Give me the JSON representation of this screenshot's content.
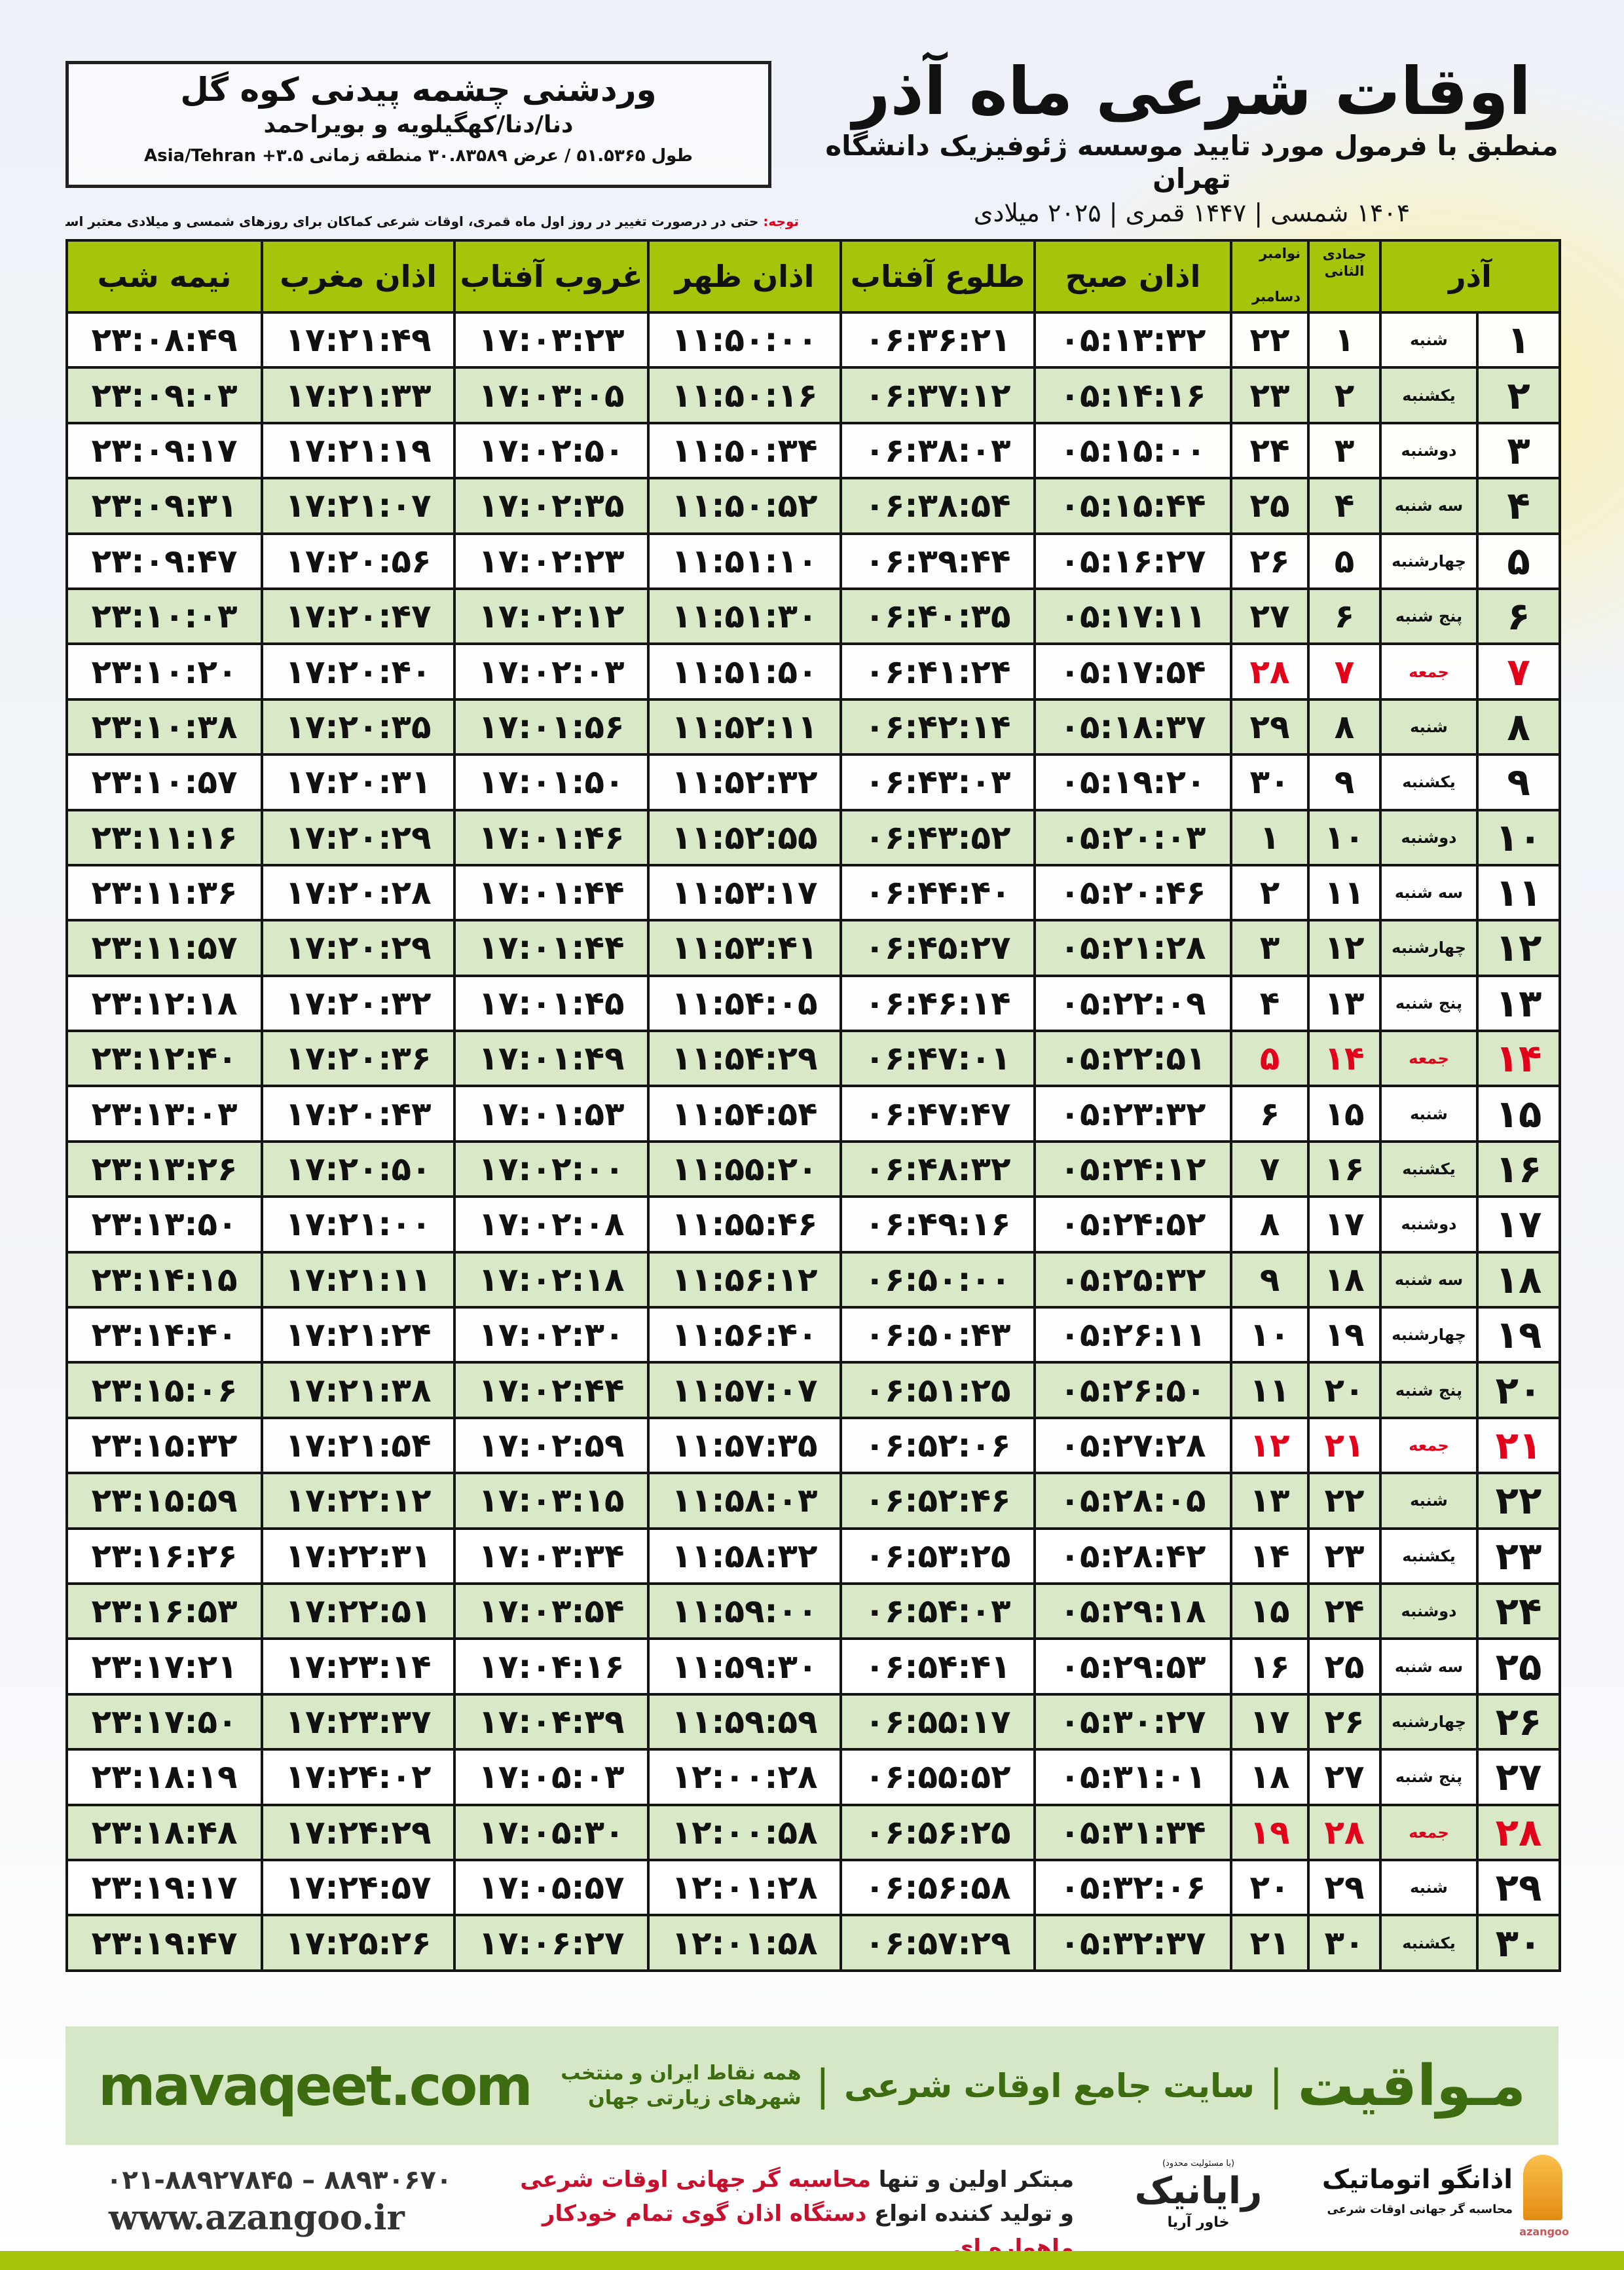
{
  "location": {
    "city": "وردشنی چشمه پیدنی کوه گل",
    "province": "دنا/دنا/کهگیلویه و بویراحمد",
    "coords": "طول ۵۱.۵۳۶۵ / عرض ۳۰.۸۳۵۸۹ منطقه زمانی ۳.۵+ Asia/Tehran"
  },
  "header": {
    "title": "اوقات شرعی ماه آذر",
    "subtitle": "منطبق با فرمول مورد تایید موسسه ژئوفیزیک دانشگاه تهران",
    "date_line": "۱۴۰۴ شمسی | ۱۴۴۷ قمری | ۲۰۲۵ میلادی"
  },
  "note": {
    "label": "توجه:",
    "text": " حتی در درصورت تغییر در روز اول ماه قمری، اوقات شرعی کماکان برای روزهای شمسی و میلادی معتبر است."
  },
  "table": {
    "columns": {
      "month": "آذر",
      "hijri": "جمادی الثانی",
      "greg_top": "نوامبر",
      "greg_bottom": "دسامبر",
      "sobh": "اذان صبح",
      "tolu": "طلوع آفتاب",
      "zohr": "اذان ظهر",
      "ghorub": "غروب آفتاب",
      "maghreb": "اذان مغرب",
      "nimeshab": "نیمه شب"
    },
    "highlight_color": "#e3001b",
    "rows": [
      {
        "day": "۱",
        "weekday": "شنبه",
        "hijri": "۱",
        "greg": "۲۲",
        "sobh": "۰۵:۱۳:۳۲",
        "tolu": "۰۶:۳۶:۲۱",
        "zohr": "۱۱:۵۰:۰۰",
        "ghorub": "۱۷:۰۳:۲۳",
        "maghreb": "۱۷:۲۱:۴۹",
        "nimeshab": "۲۳:۰۸:۴۹",
        "friday": false
      },
      {
        "day": "۲",
        "weekday": "یکشنبه",
        "hijri": "۲",
        "greg": "۲۳",
        "sobh": "۰۵:۱۴:۱۶",
        "tolu": "۰۶:۳۷:۱۲",
        "zohr": "۱۱:۵۰:۱۶",
        "ghorub": "۱۷:۰۳:۰۵",
        "maghreb": "۱۷:۲۱:۳۳",
        "nimeshab": "۲۳:۰۹:۰۳",
        "friday": false
      },
      {
        "day": "۳",
        "weekday": "دوشنبه",
        "hijri": "۳",
        "greg": "۲۴",
        "sobh": "۰۵:۱۵:۰۰",
        "tolu": "۰۶:۳۸:۰۳",
        "zohr": "۱۱:۵۰:۳۴",
        "ghorub": "۱۷:۰۲:۵۰",
        "maghreb": "۱۷:۲۱:۱۹",
        "nimeshab": "۲۳:۰۹:۱۷",
        "friday": false
      },
      {
        "day": "۴",
        "weekday": "سه شنبه",
        "hijri": "۴",
        "greg": "۲۵",
        "sobh": "۰۵:۱۵:۴۴",
        "tolu": "۰۶:۳۸:۵۴",
        "zohr": "۱۱:۵۰:۵۲",
        "ghorub": "۱۷:۰۲:۳۵",
        "maghreb": "۱۷:۲۱:۰۷",
        "nimeshab": "۲۳:۰۹:۳۱",
        "friday": false
      },
      {
        "day": "۵",
        "weekday": "چهارشنبه",
        "hijri": "۵",
        "greg": "۲۶",
        "sobh": "۰۵:۱۶:۲۷",
        "tolu": "۰۶:۳۹:۴۴",
        "zohr": "۱۱:۵۱:۱۰",
        "ghorub": "۱۷:۰۲:۲۳",
        "maghreb": "۱۷:۲۰:۵۶",
        "nimeshab": "۲۳:۰۹:۴۷",
        "friday": false
      },
      {
        "day": "۶",
        "weekday": "پنج شنبه",
        "hijri": "۶",
        "greg": "۲۷",
        "sobh": "۰۵:۱۷:۱۱",
        "tolu": "۰۶:۴۰:۳۵",
        "zohr": "۱۱:۵۱:۳۰",
        "ghorub": "۱۷:۰۲:۱۲",
        "maghreb": "۱۷:۲۰:۴۷",
        "nimeshab": "۲۳:۱۰:۰۳",
        "friday": false
      },
      {
        "day": "۷",
        "weekday": "جمعه",
        "hijri": "۷",
        "greg": "۲۸",
        "sobh": "۰۵:۱۷:۵۴",
        "tolu": "۰۶:۴۱:۲۴",
        "zohr": "۱۱:۵۱:۵۰",
        "ghorub": "۱۷:۰۲:۰۳",
        "maghreb": "۱۷:۲۰:۴۰",
        "nimeshab": "۲۳:۱۰:۲۰",
        "friday": true
      },
      {
        "day": "۸",
        "weekday": "شنبه",
        "hijri": "۸",
        "greg": "۲۹",
        "sobh": "۰۵:۱۸:۳۷",
        "tolu": "۰۶:۴۲:۱۴",
        "zohr": "۱۱:۵۲:۱۱",
        "ghorub": "۱۷:۰۱:۵۶",
        "maghreb": "۱۷:۲۰:۳۵",
        "nimeshab": "۲۳:۱۰:۳۸",
        "friday": false
      },
      {
        "day": "۹",
        "weekday": "یکشنبه",
        "hijri": "۹",
        "greg": "۳۰",
        "sobh": "۰۵:۱۹:۲۰",
        "tolu": "۰۶:۴۳:۰۳",
        "zohr": "۱۱:۵۲:۳۲",
        "ghorub": "۱۷:۰۱:۵۰",
        "maghreb": "۱۷:۲۰:۳۱",
        "nimeshab": "۲۳:۱۰:۵۷",
        "friday": false
      },
      {
        "day": "۱۰",
        "weekday": "دوشنبه",
        "hijri": "۱۰",
        "greg": "۱",
        "sobh": "۰۵:۲۰:۰۳",
        "tolu": "۰۶:۴۳:۵۲",
        "zohr": "۱۱:۵۲:۵۵",
        "ghorub": "۱۷:۰۱:۴۶",
        "maghreb": "۱۷:۲۰:۲۹",
        "nimeshab": "۲۳:۱۱:۱۶",
        "friday": false
      },
      {
        "day": "۱۱",
        "weekday": "سه شنبه",
        "hijri": "۱۱",
        "greg": "۲",
        "sobh": "۰۵:۲۰:۴۶",
        "tolu": "۰۶:۴۴:۴۰",
        "zohr": "۱۱:۵۳:۱۷",
        "ghorub": "۱۷:۰۱:۴۴",
        "maghreb": "۱۷:۲۰:۲۸",
        "nimeshab": "۲۳:۱۱:۳۶",
        "friday": false
      },
      {
        "day": "۱۲",
        "weekday": "چهارشنبه",
        "hijri": "۱۲",
        "greg": "۳",
        "sobh": "۰۵:۲۱:۲۸",
        "tolu": "۰۶:۴۵:۲۷",
        "zohr": "۱۱:۵۳:۴۱",
        "ghorub": "۱۷:۰۱:۴۴",
        "maghreb": "۱۷:۲۰:۲۹",
        "nimeshab": "۲۳:۱۱:۵۷",
        "friday": false
      },
      {
        "day": "۱۳",
        "weekday": "پنج شنبه",
        "hijri": "۱۳",
        "greg": "۴",
        "sobh": "۰۵:۲۲:۰۹",
        "tolu": "۰۶:۴۶:۱۴",
        "zohr": "۱۱:۵۴:۰۵",
        "ghorub": "۱۷:۰۱:۴۵",
        "maghreb": "۱۷:۲۰:۳۲",
        "nimeshab": "۲۳:۱۲:۱۸",
        "friday": false
      },
      {
        "day": "۱۴",
        "weekday": "جمعه",
        "hijri": "۱۴",
        "greg": "۵",
        "sobh": "۰۵:۲۲:۵۱",
        "tolu": "۰۶:۴۷:۰۱",
        "zohr": "۱۱:۵۴:۲۹",
        "ghorub": "۱۷:۰۱:۴۹",
        "maghreb": "۱۷:۲۰:۳۶",
        "nimeshab": "۲۳:۱۲:۴۰",
        "friday": true
      },
      {
        "day": "۱۵",
        "weekday": "شنبه",
        "hijri": "۱۵",
        "greg": "۶",
        "sobh": "۰۵:۲۳:۳۲",
        "tolu": "۰۶:۴۷:۴۷",
        "zohr": "۱۱:۵۴:۵۴",
        "ghorub": "۱۷:۰۱:۵۳",
        "maghreb": "۱۷:۲۰:۴۳",
        "nimeshab": "۲۳:۱۳:۰۳",
        "friday": false
      },
      {
        "day": "۱۶",
        "weekday": "یکشنبه",
        "hijri": "۱۶",
        "greg": "۷",
        "sobh": "۰۵:۲۴:۱۲",
        "tolu": "۰۶:۴۸:۳۲",
        "zohr": "۱۱:۵۵:۲۰",
        "ghorub": "۱۷:۰۲:۰۰",
        "maghreb": "۱۷:۲۰:۵۰",
        "nimeshab": "۲۳:۱۳:۲۶",
        "friday": false
      },
      {
        "day": "۱۷",
        "weekday": "دوشنبه",
        "hijri": "۱۷",
        "greg": "۸",
        "sobh": "۰۵:۲۴:۵۲",
        "tolu": "۰۶:۴۹:۱۶",
        "zohr": "۱۱:۵۵:۴۶",
        "ghorub": "۱۷:۰۲:۰۸",
        "maghreb": "۱۷:۲۱:۰۰",
        "nimeshab": "۲۳:۱۳:۵۰",
        "friday": false
      },
      {
        "day": "۱۸",
        "weekday": "سه شنبه",
        "hijri": "۱۸",
        "greg": "۹",
        "sobh": "۰۵:۲۵:۳۲",
        "tolu": "۰۶:۵۰:۰۰",
        "zohr": "۱۱:۵۶:۱۲",
        "ghorub": "۱۷:۰۲:۱۸",
        "maghreb": "۱۷:۲۱:۱۱",
        "nimeshab": "۲۳:۱۴:۱۵",
        "friday": false
      },
      {
        "day": "۱۹",
        "weekday": "چهارشنبه",
        "hijri": "۱۹",
        "greg": "۱۰",
        "sobh": "۰۵:۲۶:۱۱",
        "tolu": "۰۶:۵۰:۴۳",
        "zohr": "۱۱:۵۶:۴۰",
        "ghorub": "۱۷:۰۲:۳۰",
        "maghreb": "۱۷:۲۱:۲۴",
        "nimeshab": "۲۳:۱۴:۴۰",
        "friday": false
      },
      {
        "day": "۲۰",
        "weekday": "پنج شنبه",
        "hijri": "۲۰",
        "greg": "۱۱",
        "sobh": "۰۵:۲۶:۵۰",
        "tolu": "۰۶:۵۱:۲۵",
        "zohr": "۱۱:۵۷:۰۷",
        "ghorub": "۱۷:۰۲:۴۴",
        "maghreb": "۱۷:۲۱:۳۸",
        "nimeshab": "۲۳:۱۵:۰۶",
        "friday": false
      },
      {
        "day": "۲۱",
        "weekday": "جمعه",
        "hijri": "۲۱",
        "greg": "۱۲",
        "sobh": "۰۵:۲۷:۲۸",
        "tolu": "۰۶:۵۲:۰۶",
        "zohr": "۱۱:۵۷:۳۵",
        "ghorub": "۱۷:۰۲:۵۹",
        "maghreb": "۱۷:۲۱:۵۴",
        "nimeshab": "۲۳:۱۵:۳۲",
        "friday": true
      },
      {
        "day": "۲۲",
        "weekday": "شنبه",
        "hijri": "۲۲",
        "greg": "۱۳",
        "sobh": "۰۵:۲۸:۰۵",
        "tolu": "۰۶:۵۲:۴۶",
        "zohr": "۱۱:۵۸:۰۳",
        "ghorub": "۱۷:۰۳:۱۵",
        "maghreb": "۱۷:۲۲:۱۲",
        "nimeshab": "۲۳:۱۵:۵۹",
        "friday": false
      },
      {
        "day": "۲۳",
        "weekday": "یکشنبه",
        "hijri": "۲۳",
        "greg": "۱۴",
        "sobh": "۰۵:۲۸:۴۲",
        "tolu": "۰۶:۵۳:۲۵",
        "zohr": "۱۱:۵۸:۳۲",
        "ghorub": "۱۷:۰۳:۳۴",
        "maghreb": "۱۷:۲۲:۳۱",
        "nimeshab": "۲۳:۱۶:۲۶",
        "friday": false
      },
      {
        "day": "۲۴",
        "weekday": "دوشنبه",
        "hijri": "۲۴",
        "greg": "۱۵",
        "sobh": "۰۵:۲۹:۱۸",
        "tolu": "۰۶:۵۴:۰۳",
        "zohr": "۱۱:۵۹:۰۰",
        "ghorub": "۱۷:۰۳:۵۴",
        "maghreb": "۱۷:۲۲:۵۱",
        "nimeshab": "۲۳:۱۶:۵۳",
        "friday": false
      },
      {
        "day": "۲۵",
        "weekday": "سه شنبه",
        "hijri": "۲۵",
        "greg": "۱۶",
        "sobh": "۰۵:۲۹:۵۳",
        "tolu": "۰۶:۵۴:۴۱",
        "zohr": "۱۱:۵۹:۳۰",
        "ghorub": "۱۷:۰۴:۱۶",
        "maghreb": "۱۷:۲۳:۱۴",
        "nimeshab": "۲۳:۱۷:۲۱",
        "friday": false
      },
      {
        "day": "۲۶",
        "weekday": "چهارشنبه",
        "hijri": "۲۶",
        "greg": "۱۷",
        "sobh": "۰۵:۳۰:۲۷",
        "tolu": "۰۶:۵۵:۱۷",
        "zohr": "۱۱:۵۹:۵۹",
        "ghorub": "۱۷:۰۴:۳۹",
        "maghreb": "۱۷:۲۳:۳۷",
        "nimeshab": "۲۳:۱۷:۵۰",
        "friday": false
      },
      {
        "day": "۲۷",
        "weekday": "پنج شنبه",
        "hijri": "۲۷",
        "greg": "۱۸",
        "sobh": "۰۵:۳۱:۰۱",
        "tolu": "۰۶:۵۵:۵۲",
        "zohr": "۱۲:۰۰:۲۸",
        "ghorub": "۱۷:۰۵:۰۳",
        "maghreb": "۱۷:۲۴:۰۲",
        "nimeshab": "۲۳:۱۸:۱۹",
        "friday": false
      },
      {
        "day": "۲۸",
        "weekday": "جمعه",
        "hijri": "۲۸",
        "greg": "۱۹",
        "sobh": "۰۵:۳۱:۳۴",
        "tolu": "۰۶:۵۶:۲۵",
        "zohr": "۱۲:۰۰:۵۸",
        "ghorub": "۱۷:۰۵:۳۰",
        "maghreb": "۱۷:۲۴:۲۹",
        "nimeshab": "۲۳:۱۸:۴۸",
        "friday": true
      },
      {
        "day": "۲۹",
        "weekday": "شنبه",
        "hijri": "۲۹",
        "greg": "۲۰",
        "sobh": "۰۵:۳۲:۰۶",
        "tolu": "۰۶:۵۶:۵۸",
        "zohr": "۱۲:۰۱:۲۸",
        "ghorub": "۱۷:۰۵:۵۷",
        "maghreb": "۱۷:۲۴:۵۷",
        "nimeshab": "۲۳:۱۹:۱۷",
        "friday": false
      },
      {
        "day": "۳۰",
        "weekday": "یکشنبه",
        "hijri": "۳۰",
        "greg": "۲۱",
        "sobh": "۰۵:۳۲:۳۷",
        "tolu": "۰۶:۵۷:۲۹",
        "zohr": "۱۲:۰۱:۵۸",
        "ghorub": "۱۷:۰۶:۲۷",
        "maghreb": "۱۷:۲۵:۲۶",
        "nimeshab": "۲۳:۱۹:۴۷",
        "friday": false
      }
    ]
  },
  "banner": {
    "brand": "مـواقیت",
    "separator": "|",
    "tagline": "سایت جامع اوقات شرعی",
    "tagline2": "همه نقاط ایران و منتخب شهرهای زیارتی جهان",
    "url": "mavaqeet.com",
    "color": "#3d6b10"
  },
  "footer": {
    "phone": "۰۲۱-۸۸۹۲۷۸۴۵ – ۸۸۹۳۰۶۷۰",
    "website": "www.azangoo.ir",
    "line1_a": "مبتکر اولین و تنها ",
    "line1_b": "محاسبه گر جهانی اوقات شرعی",
    "line2_a": "و تولید کننده انواع ",
    "line2_b": "دستگاه اذان گوی تمام خودکار ماهواره ای",
    "rayanik_small": "(با مسئولیت محدود)",
    "rayanik_name": "رایانیک",
    "rayanik_sub": "خاور آریا",
    "azangoo_name": "اذانگو اتوماتیک",
    "azangoo_en": "azangoo",
    "azangoo_slogan": "محاسبه گر جهانی اوقات شرعی"
  }
}
